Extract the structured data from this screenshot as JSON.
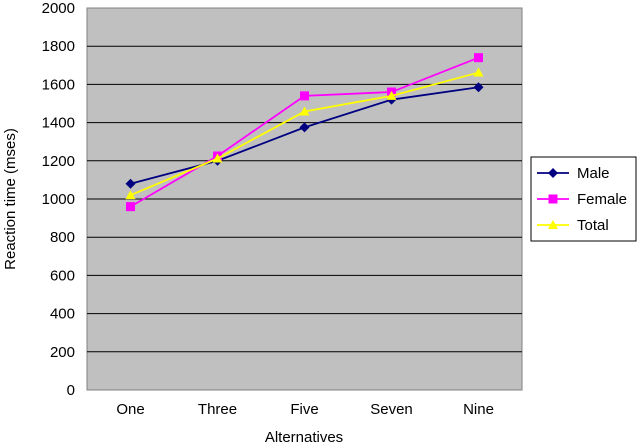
{
  "chart_data": {
    "type": "line",
    "title": "",
    "xlabel": "Alternatives",
    "ylabel": "Reaction time (mses)",
    "categories": [
      "One",
      "Three",
      "Five",
      "Seven",
      "Nine"
    ],
    "ylim": [
      0,
      2000
    ],
    "yticks": [
      0,
      200,
      400,
      600,
      800,
      1000,
      1200,
      1400,
      1600,
      1800,
      2000
    ],
    "grid": true,
    "legend_position": "right",
    "plot_background": "#c0c0c0",
    "series": [
      {
        "name": "Male",
        "color": "#000080",
        "marker": "diamond",
        "values": [
          1080,
          1200,
          1375,
          1520,
          1585
        ]
      },
      {
        "name": "Female",
        "color": "#ff00ff",
        "marker": "square",
        "values": [
          960,
          1225,
          1540,
          1560,
          1740
        ]
      },
      {
        "name": "Total",
        "color": "#ffff00",
        "marker": "triangle",
        "values": [
          1020,
          1212,
          1458,
          1540,
          1662
        ]
      }
    ]
  }
}
